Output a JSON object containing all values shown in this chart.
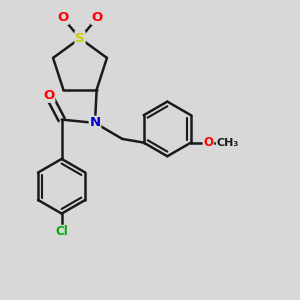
{
  "bg_color": "#d8d8d8",
  "bond_color": "#1a1a1a",
  "bond_width": 1.8,
  "S_color": "#cccc00",
  "O_color": "#ff0000",
  "N_color": "#0000cc",
  "Cl_color": "#00aa00",
  "C_color": "#1a1a1a",
  "font_size": 8.5,
  "fig_size": [
    3.0,
    3.0
  ],
  "dpi": 100,
  "xlim": [
    0,
    9
  ],
  "ylim": [
    0,
    9
  ]
}
